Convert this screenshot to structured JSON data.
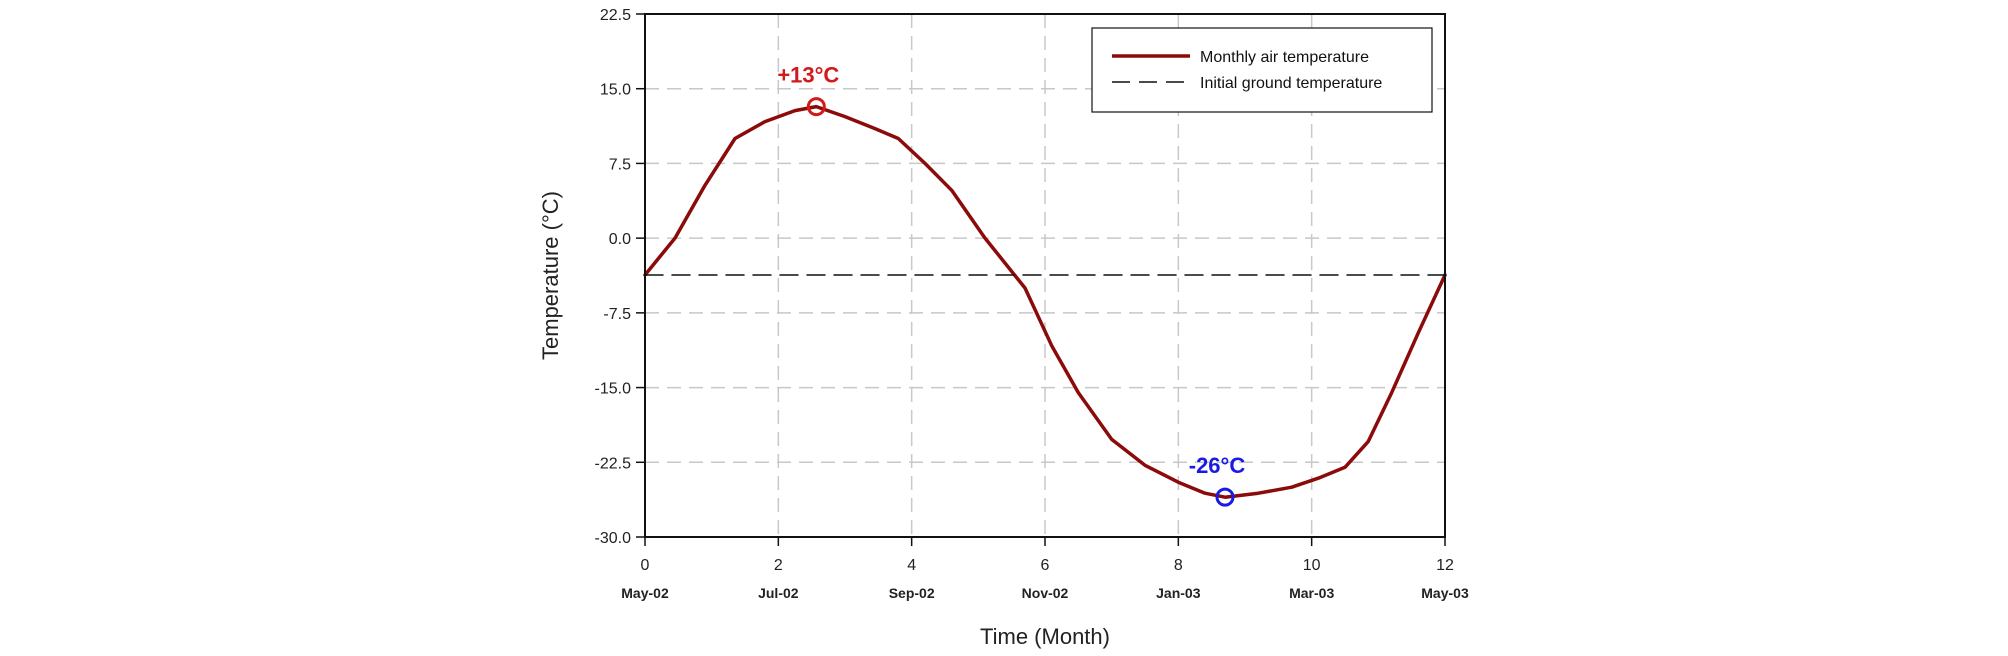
{
  "chart_data": {
    "type": "line",
    "xlabel": "Time (Month)",
    "ylabel": "Temperature (°C)",
    "xlim": [
      0,
      12
    ],
    "ylim": [
      -30,
      22.5
    ],
    "x_ticks": [
      0,
      2,
      4,
      6,
      8,
      10,
      12
    ],
    "x_tick_labels": [
      "0",
      "2",
      "4",
      "6",
      "8",
      "10",
      "12"
    ],
    "x_date_labels": [
      "May-02",
      "Jul-02",
      "Sep-02",
      "Nov-02",
      "Jan-03",
      "Mar-03",
      "May-03"
    ],
    "y_ticks": [
      -30,
      -22.5,
      -15,
      -7.5,
      0,
      7.5,
      15,
      22.5
    ],
    "y_tick_labels": [
      "-30.0",
      "-22.5",
      "-15.0",
      "-7.5",
      "0.0",
      "7.5",
      "15.0",
      "22.5"
    ],
    "grid": true,
    "legend_position": "top-right",
    "series": [
      {
        "name": "Monthly air temperature",
        "color": "#8b0a0a",
        "style": "solid",
        "x": [
          0,
          0.45,
          0.9,
          1.35,
          1.8,
          2.25,
          2.57,
          3.0,
          3.45,
          3.8,
          4.2,
          4.6,
          5.1,
          5.7,
          6.1,
          6.5,
          7.0,
          7.5,
          8.0,
          8.4,
          8.7,
          9.2,
          9.7,
          10.1,
          10.5,
          10.85,
          11.2,
          11.6,
          12.0
        ],
        "y": [
          -3.7,
          0,
          5.3,
          10,
          11.7,
          12.8,
          13.2,
          12.2,
          11,
          10,
          7.5,
          4.8,
          0,
          -5,
          -10.8,
          -15.5,
          -20.2,
          -22.8,
          -24.5,
          -25.6,
          -26.0,
          -25.6,
          -25,
          -24.1,
          -23,
          -20.4,
          -15.5,
          -9.5,
          -3.7
        ]
      },
      {
        "name": "Initial ground temperature",
        "color": "#111111",
        "style": "dashed",
        "x": [
          0,
          12
        ],
        "y": [
          -3.7,
          -3.7
        ]
      }
    ],
    "annotations": [
      {
        "text": "+13°C",
        "x": 2.57,
        "y": 13.2,
        "color": "#d11a1a"
      },
      {
        "text": "-26°C",
        "x": 8.7,
        "y": -26.0,
        "color": "#1a1ae6"
      }
    ]
  }
}
